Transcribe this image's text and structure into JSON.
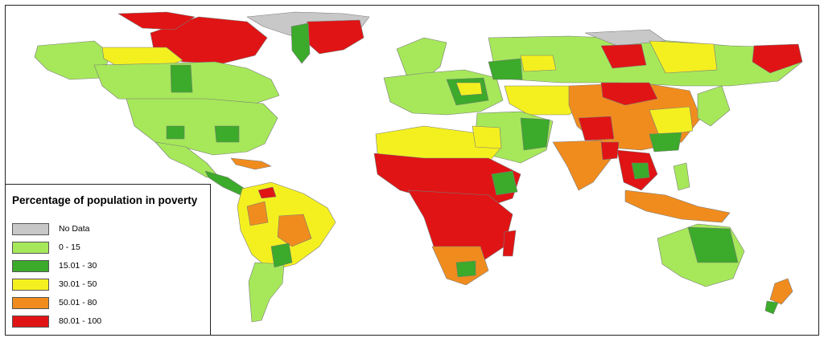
{
  "legend": {
    "title": "Percentage of population in poverty",
    "items": [
      {
        "label": "No Data",
        "color": "#c8c8c8"
      },
      {
        "label": "0 - 15",
        "color": "#a6e85a"
      },
      {
        "label": "15.01 - 30",
        "color": "#3caa2a"
      },
      {
        "label": "30.01 - 50",
        "color": "#f4f020"
      },
      {
        "label": "50.01 - 80",
        "color": "#f08c1e"
      },
      {
        "label": "80.01 - 100",
        "color": "#e01414"
      }
    ]
  },
  "colors": {
    "no_data": "#c8c8c8",
    "c0_15": "#a6e85a",
    "c15_30": "#3caa2a",
    "c30_50": "#f4f020",
    "c50_80": "#f08c1e",
    "c80_100": "#e01414",
    "border": "#777777"
  }
}
